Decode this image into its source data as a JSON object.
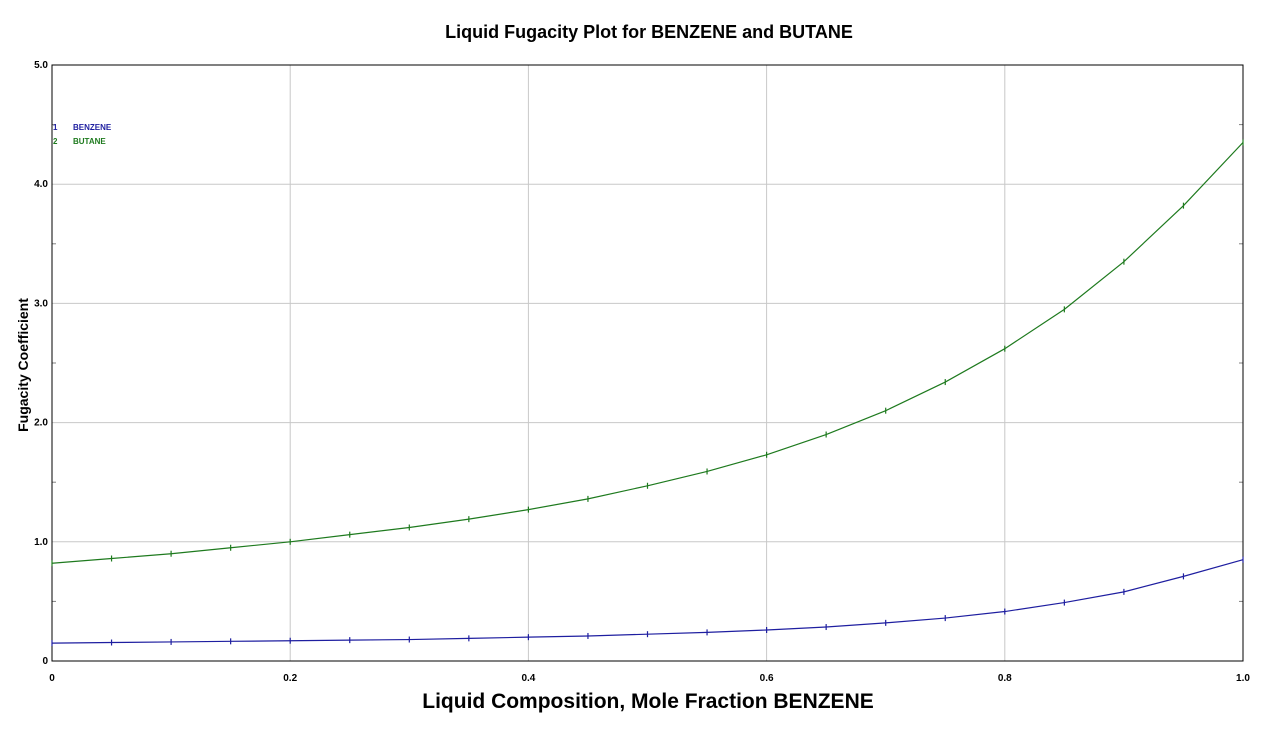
{
  "chart_data": {
    "type": "line",
    "title": "Liquid Fugacity Plot for BENZENE and BUTANE",
    "xlabel": "Liquid Composition, Mole Fraction BENZENE",
    "ylabel": "Fugacity Coefficient",
    "xlim": [
      0,
      1.0
    ],
    "ylim": [
      0,
      5.0
    ],
    "x_ticks": [
      "0",
      "0.2",
      "0.4",
      "0.6",
      "0.8",
      "1.0"
    ],
    "y_ticks": [
      "0",
      "1.0",
      "2.0",
      "3.0",
      "4.0",
      "5.0"
    ],
    "grid": true,
    "legend_position": "top-left",
    "x": [
      0,
      0.05,
      0.1,
      0.15,
      0.2,
      0.25,
      0.3,
      0.35,
      0.4,
      0.45,
      0.5,
      0.55,
      0.6,
      0.65,
      0.7,
      0.75,
      0.8,
      0.85,
      0.9,
      0.95,
      1.0
    ],
    "series": [
      {
        "name": "BENZENE",
        "marker": "1",
        "color": "#1e1ea0",
        "values": [
          0.15,
          0.155,
          0.16,
          0.165,
          0.17,
          0.175,
          0.18,
          0.19,
          0.2,
          0.21,
          0.225,
          0.24,
          0.26,
          0.285,
          0.32,
          0.36,
          0.415,
          0.49,
          0.58,
          0.71,
          0.85
        ]
      },
      {
        "name": "BUTANE",
        "marker": "2",
        "color": "#1e7a1e",
        "values": [
          0.82,
          0.86,
          0.9,
          0.95,
          1.0,
          1.06,
          1.12,
          1.19,
          1.27,
          1.36,
          1.47,
          1.59,
          1.73,
          1.9,
          2.1,
          2.34,
          2.62,
          2.95,
          3.35,
          3.82,
          4.35
        ]
      }
    ]
  }
}
